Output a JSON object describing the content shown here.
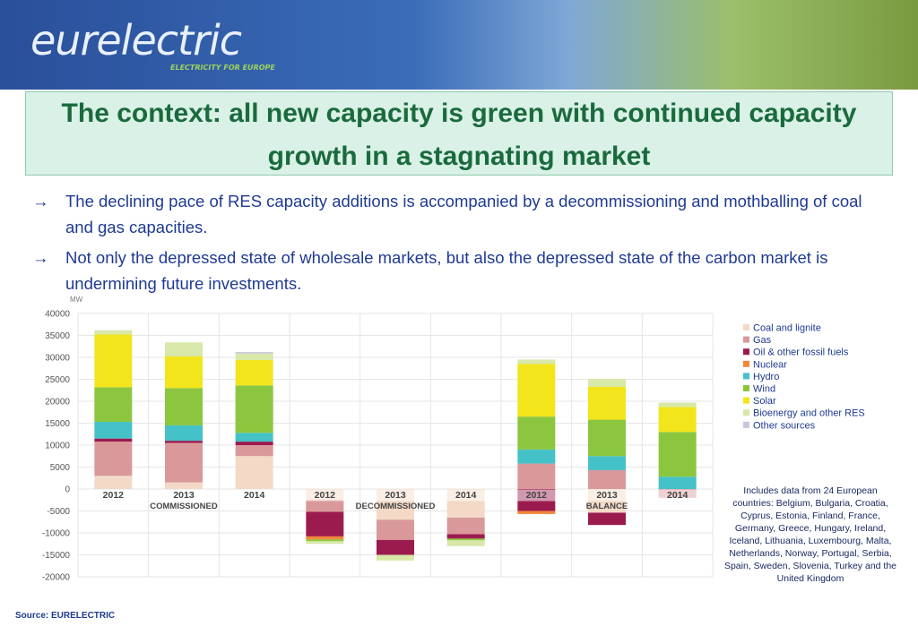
{
  "header": {
    "logo": "eurelectric",
    "tagline": "ELECTRICITY FOR EUROPE"
  },
  "title": "The context: all new capacity is green with continued capacity growth in a stagnating market",
  "bullets": [
    "The declining pace of RES capacity additions is accompanied by a decommissioning and mothballing of coal and gas capacities.",
    "Not only the depressed state of wholesale markets, but also the depressed state of the carbon market is undermining future investments."
  ],
  "chart_data": {
    "type": "stacked_bar",
    "y_unit": "MW",
    "categories": [
      "2012",
      "2013",
      "2014",
      "2012",
      "2013",
      "2014",
      "2012",
      "2013",
      "2014"
    ],
    "group_labels": [
      "COMMISSIONED",
      "DECOMMISSIONED",
      "BALANCE"
    ],
    "ylim": [
      -20000,
      40000
    ],
    "yticks": [
      -20000,
      -15000,
      -10000,
      -5000,
      0,
      5000,
      10000,
      15000,
      20000,
      25000,
      30000,
      35000,
      40000
    ],
    "grid": true,
    "series": [
      {
        "name": "Coal and lignite",
        "color": "#f3d9c6",
        "values": [
          3000,
          1500,
          7500,
          -2500,
          -7000,
          -6500,
          0,
          -5400,
          0
        ]
      },
      {
        "name": "Gas",
        "color": "#d9999b",
        "values": [
          7800,
          9000,
          2500,
          -2700,
          -4600,
          -3800,
          5800,
          4300,
          -2000
        ]
      },
      {
        "name": "Oil & other fossil fuels",
        "color": "#9b1b4f",
        "values": [
          700,
          500,
          800,
          -5600,
          -3400,
          -1000,
          -5000,
          -2800,
          0
        ]
      },
      {
        "name": "Nuclear",
        "color": "#f0883a",
        "values": [
          0,
          0,
          0,
          -700,
          0,
          0,
          -700,
          0,
          0
        ]
      },
      {
        "name": "Hydro",
        "color": "#45c1c8",
        "values": [
          3800,
          3500,
          2000,
          0,
          0,
          0,
          3200,
          3200,
          2800
        ]
      },
      {
        "name": "Wind",
        "color": "#8cc63f",
        "values": [
          7900,
          8500,
          10800,
          -400,
          0,
          -400,
          7500,
          8300,
          10200
        ]
      },
      {
        "name": "Solar",
        "color": "#f2e51c",
        "values": [
          12000,
          7200,
          5800,
          0,
          0,
          0,
          12000,
          7500,
          5700
        ]
      },
      {
        "name": "Bioenergy and other RES",
        "color": "#d7e8a9",
        "values": [
          1000,
          3200,
          1500,
          -600,
          -1300,
          -1300,
          1000,
          1800,
          1000
        ]
      },
      {
        "name": "Other sources",
        "color": "#c9c3dd",
        "values": [
          0,
          0,
          300,
          0,
          0,
          0,
          0,
          0,
          0
        ]
      }
    ]
  },
  "note": "Includes data from 24 European countries: Belgium, Bulgaria, Croatia, Cyprus, Estonia, Finland, France, Germany, Greece, Hungary, Ireland, Iceland, Lithuania, Luxembourg, Malta, Netherlands, Norway, Portugal, Serbia, Spain, Sweden, Slovenia, Turkey and the United Kingdom",
  "source": "Source: EURELECTRIC"
}
